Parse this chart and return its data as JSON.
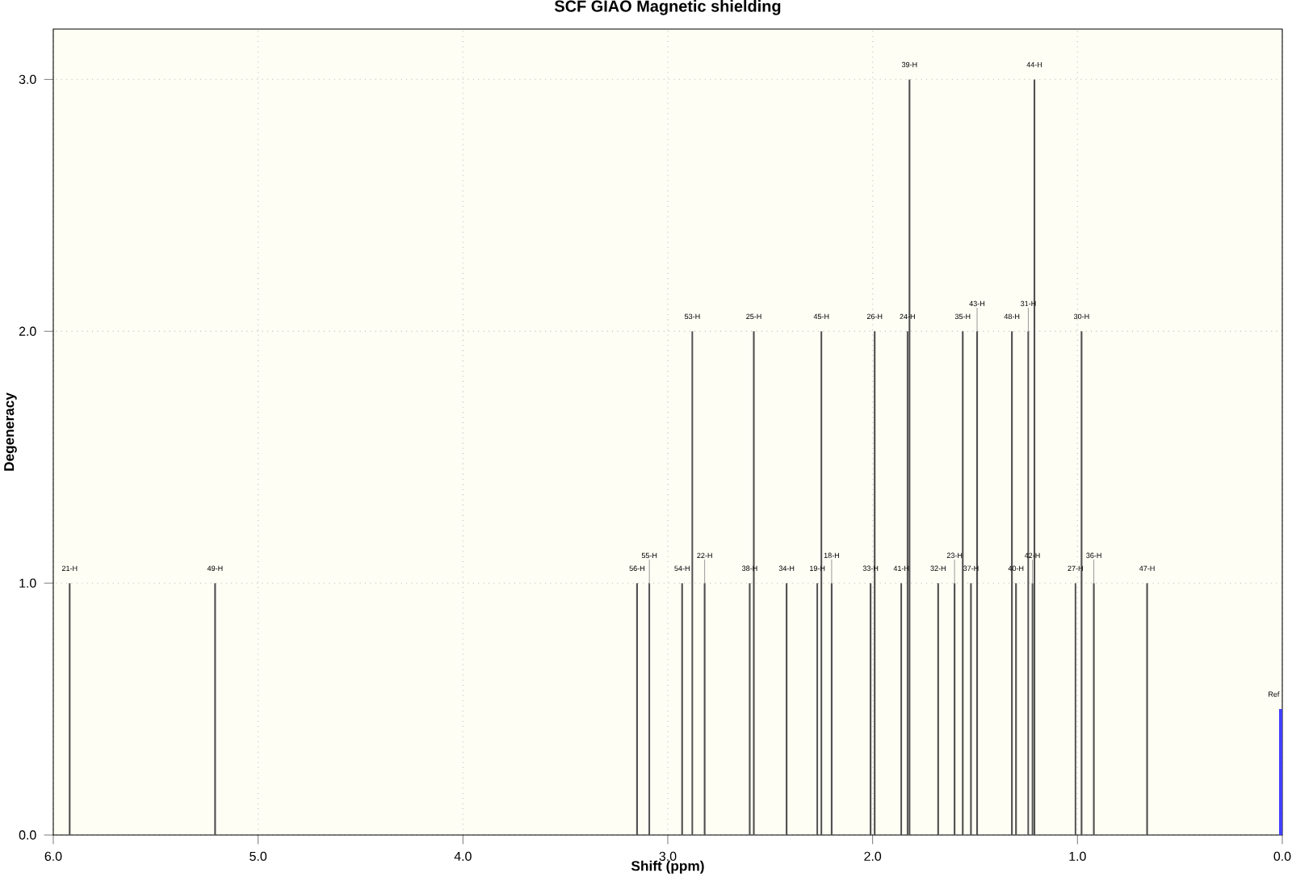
{
  "chart_data": {
    "type": "bar",
    "title": "SCF GIAO Magnetic shielding",
    "xlabel": "Shift (ppm)",
    "ylabel": "Degeneracy",
    "xlim": [
      6.0,
      0.0
    ],
    "xticks": [
      {
        "value": 6,
        "label": "6.0"
      },
      {
        "value": 5,
        "label": "5.0"
      },
      {
        "value": 4,
        "label": "4.0"
      },
      {
        "value": 3,
        "label": "3.0"
      },
      {
        "value": 2,
        "label": "2.0"
      },
      {
        "value": 1,
        "label": "1.0"
      },
      {
        "value": 0,
        "label": "0.0"
      }
    ],
    "ylim": [
      0,
      3.2
    ],
    "yticks": [
      {
        "value": 0,
        "label": "0.0"
      },
      {
        "value": 1,
        "label": "1.0"
      },
      {
        "value": 2,
        "label": "2.0"
      },
      {
        "value": 3,
        "label": "3.0"
      }
    ],
    "grid": true,
    "series": [
      {
        "color": "#505050",
        "x": [
          5.92,
          5.21,
          3.15,
          3.09,
          2.93,
          2.88,
          2.82,
          2.6,
          2.58,
          2.42,
          2.27,
          2.25,
          2.2,
          2.01,
          1.99,
          1.86,
          1.83,
          1.82,
          1.68,
          1.6,
          1.56,
          1.52,
          1.49,
          1.32,
          1.3,
          1.24,
          1.22,
          1.21,
          1.01,
          0.98,
          0.92,
          0.66
        ],
        "values": [
          1,
          1,
          1,
          1,
          1,
          2,
          1,
          1,
          2,
          1,
          1,
          2,
          1,
          1,
          2,
          1,
          2,
          3,
          1,
          1,
          2,
          1,
          2,
          2,
          1,
          2,
          1,
          3,
          1,
          2,
          1,
          1
        ]
      },
      {
        "color": "#4040ff",
        "x": [
          0.0
        ],
        "values": [
          0.5
        ]
      }
    ],
    "annotations": [
      {
        "text": "21-H",
        "x": 5.92,
        "y": 1
      },
      {
        "text": "49-H",
        "x": 5.21,
        "y": 1
      },
      {
        "text": "56-H",
        "x": 3.15,
        "y": 1
      },
      {
        "text": "55-H",
        "x": 3.09,
        "y": 1
      },
      {
        "text": "54-H",
        "x": 2.93,
        "y": 1
      },
      {
        "text": "53-H",
        "x": 2.88,
        "y": 2
      },
      {
        "text": "22-H",
        "x": 2.82,
        "y": 1
      },
      {
        "text": "38-H",
        "x": 2.6,
        "y": 1
      },
      {
        "text": "25-H",
        "x": 2.58,
        "y": 2
      },
      {
        "text": "34-H",
        "x": 2.42,
        "y": 1
      },
      {
        "text": "19-H",
        "x": 2.27,
        "y": 1
      },
      {
        "text": "45-H",
        "x": 2.25,
        "y": 2
      },
      {
        "text": "18-H",
        "x": 2.2,
        "y": 1
      },
      {
        "text": "33-H",
        "x": 2.01,
        "y": 1
      },
      {
        "text": "26-H",
        "x": 1.99,
        "y": 2
      },
      {
        "text": "41-H",
        "x": 1.86,
        "y": 1
      },
      {
        "text": "24-H",
        "x": 1.83,
        "y": 2
      },
      {
        "text": "39-H",
        "x": 1.82,
        "y": 3
      },
      {
        "text": "32-H",
        "x": 1.68,
        "y": 1
      },
      {
        "text": "23-H",
        "x": 1.6,
        "y": 1
      },
      {
        "text": "35-H",
        "x": 1.56,
        "y": 2
      },
      {
        "text": "37-H",
        "x": 1.52,
        "y": 1
      },
      {
        "text": "43-H",
        "x": 1.49,
        "y": 2
      },
      {
        "text": "48-H",
        "x": 1.32,
        "y": 2
      },
      {
        "text": "40-H",
        "x": 1.3,
        "y": 1
      },
      {
        "text": "31-H",
        "x": 1.24,
        "y": 2
      },
      {
        "text": "42-H",
        "x": 1.22,
        "y": 1
      },
      {
        "text": "44-H",
        "x": 1.21,
        "y": 3
      },
      {
        "text": "27-H",
        "x": 1.01,
        "y": 1
      },
      {
        "text": "30-H",
        "x": 0.98,
        "y": 2
      },
      {
        "text": "36-H",
        "x": 0.92,
        "y": 1
      },
      {
        "text": "47-H",
        "x": 0.66,
        "y": 1
      },
      "Ref"
    ]
  }
}
